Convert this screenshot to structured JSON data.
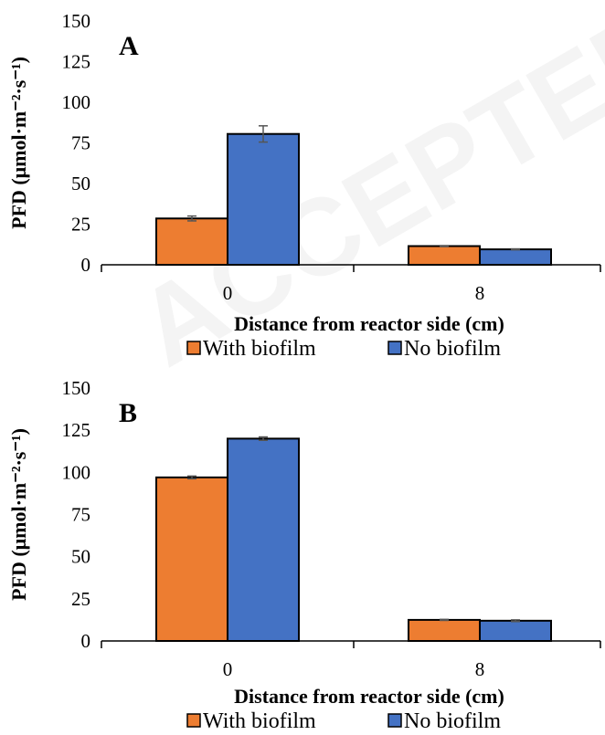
{
  "watermark": "ACCEPTED",
  "colors": {
    "with_biofilm": "#ED7D31",
    "no_biofilm": "#4472C4",
    "error_bar": "#555555"
  },
  "chart_data": [
    {
      "type": "bar",
      "panel_label": "A",
      "categories": [
        "0",
        "8"
      ],
      "series": [
        {
          "name": "With biofilm",
          "values": [
            28.5,
            11.5
          ],
          "errors": [
            1.5,
            0.3
          ]
        },
        {
          "name": "No biofilm",
          "values": [
            80.5,
            9.5
          ],
          "errors": [
            5,
            0.3
          ]
        }
      ],
      "xlabel": "Distance from reactor side (cm)",
      "ylabel": "PFD (μmol·m⁻²·s⁻¹)",
      "ylim": [
        0,
        150
      ],
      "yticks": [
        "0",
        "25",
        "50",
        "75",
        "100",
        "125",
        "150"
      ],
      "legend": "bottom",
      "grid": false
    },
    {
      "type": "bar",
      "panel_label": "B",
      "categories": [
        "0",
        "8"
      ],
      "series": [
        {
          "name": "With biofilm",
          "values": [
            97,
            12.5
          ],
          "errors": [
            0.8,
            0.3
          ]
        },
        {
          "name": "No biofilm",
          "values": [
            120,
            12
          ],
          "errors": [
            1,
            0.5
          ]
        }
      ],
      "xlabel": "Distance from reactor side (cm)",
      "ylabel": "PFD (μmol·m⁻²·s⁻¹)",
      "ylim": [
        0,
        150
      ],
      "yticks": [
        "0",
        "25",
        "50",
        "75",
        "100",
        "125",
        "150"
      ],
      "legend": "bottom",
      "grid": false
    }
  ]
}
